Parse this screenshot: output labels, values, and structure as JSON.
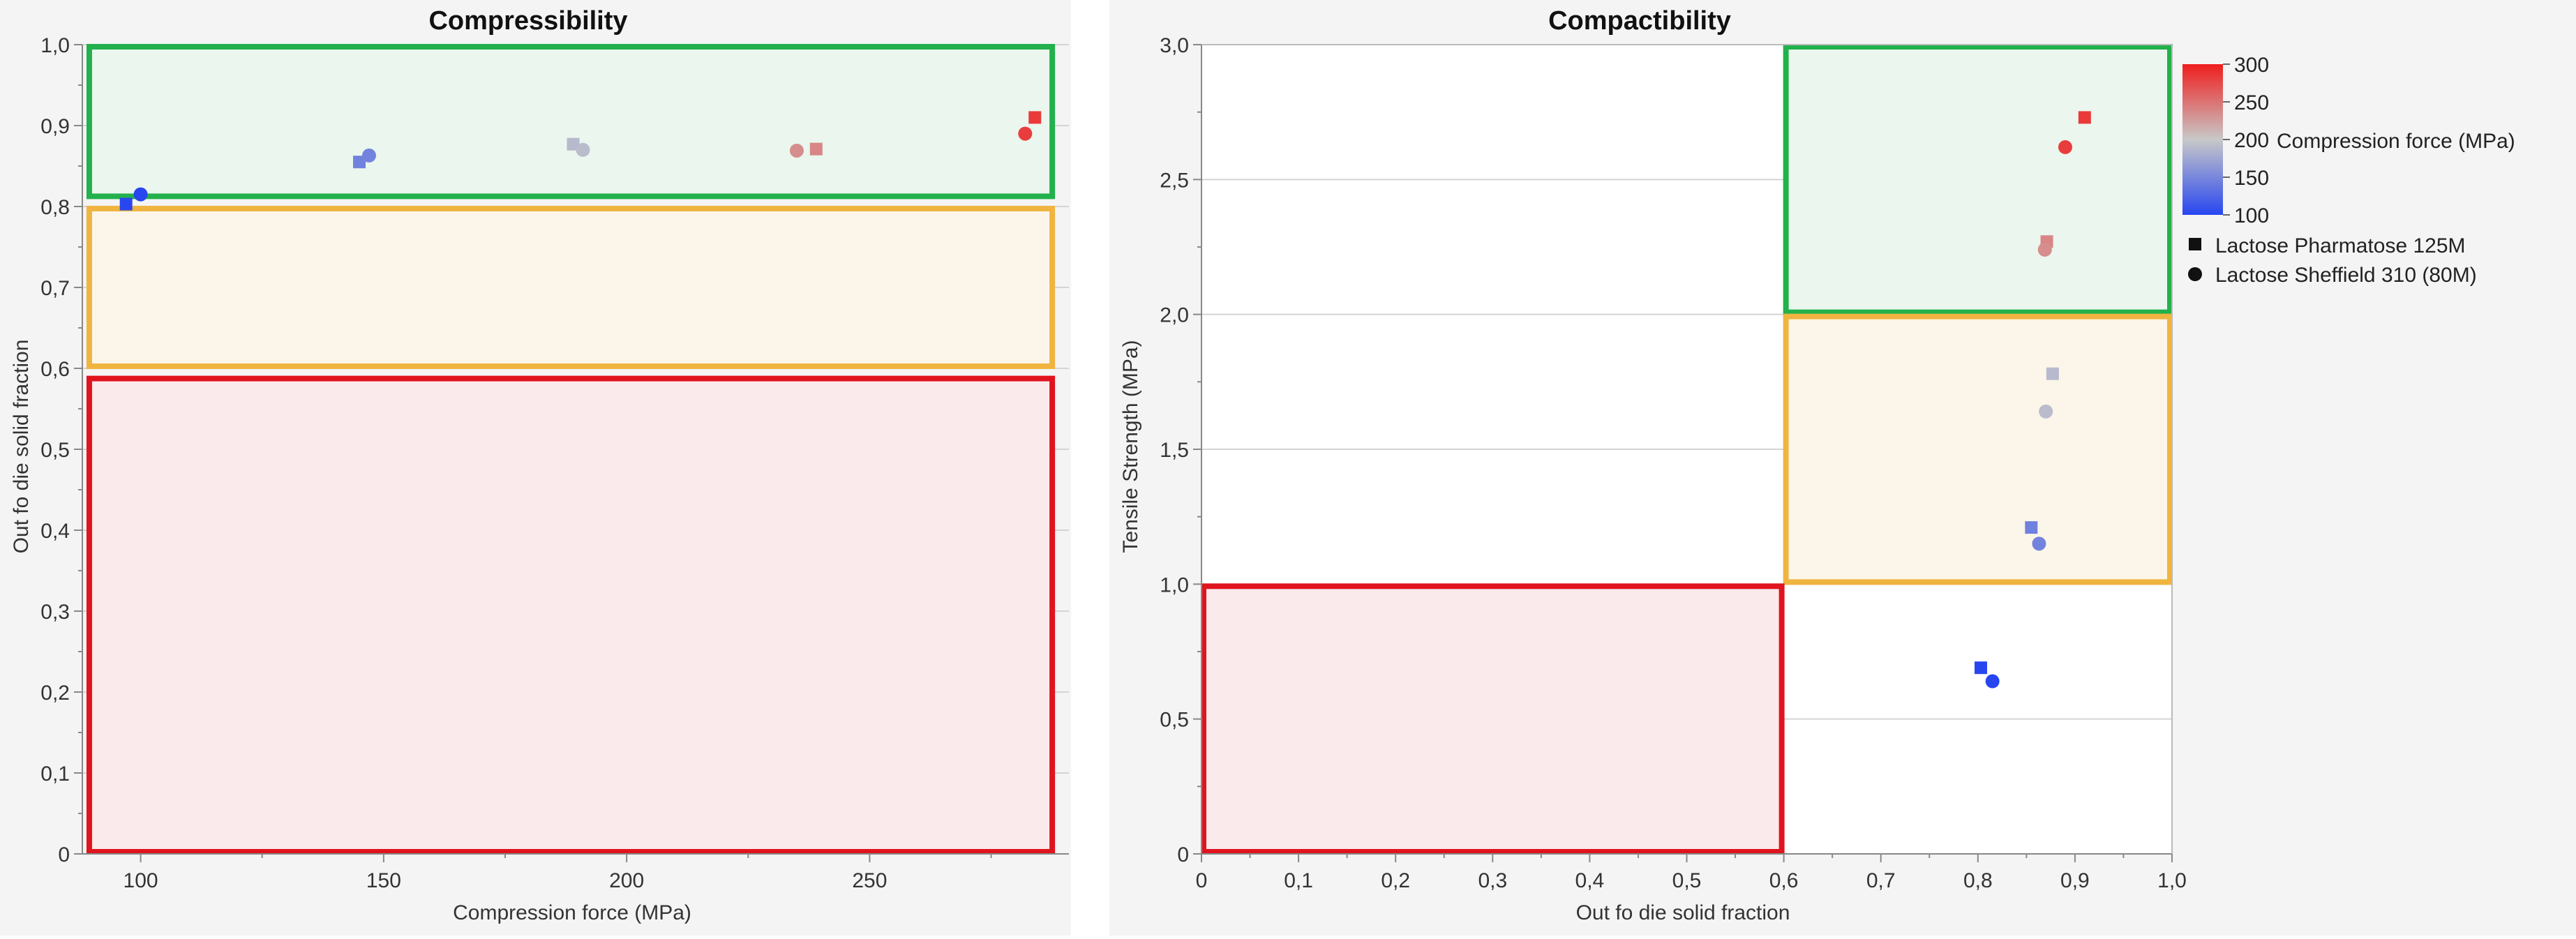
{
  "charts": {
    "compressibility": {
      "title": "Compressibility",
      "xlabel": "Compression force (MPa)",
      "ylabel": "Out fo die solid fraction",
      "x_ticks": [
        "100",
        "150",
        "200",
        "250"
      ],
      "y_ticks": [
        "0",
        "0,1",
        "0,2",
        "0,3",
        "0,4",
        "0,5",
        "0,6",
        "0,7",
        "0,8",
        "0,9",
        "1,0"
      ]
    },
    "compactibility": {
      "title": "Compactibility",
      "xlabel": "Out fo die solid fraction",
      "ylabel": "Tensile Strength (MPa)",
      "x_ticks": [
        "0",
        "0,1",
        "0,2",
        "0,3",
        "0,4",
        "0,5",
        "0,6",
        "0,7",
        "0,8",
        "0,9",
        "1,0"
      ],
      "y_ticks": [
        "0",
        "0,5",
        "1,0",
        "1,5",
        "2,0",
        "2,5",
        "3,0"
      ]
    }
  },
  "legend": {
    "colorbar_title": "Compression force (MPa)",
    "colorbar_ticks": [
      "300",
      "250",
      "200",
      "150",
      "100"
    ],
    "series": [
      {
        "name": "Lactose Pharmatose 125M",
        "marker": "square"
      },
      {
        "name": "Lactose Sheffield 310 (80M)",
        "marker": "circle"
      }
    ]
  },
  "colors": {
    "zone_green": "#22b14c",
    "zone_orange": "#f0b440",
    "zone_red": "#e0141e",
    "zone_green_fill": "#eaf6ee",
    "zone_orange_fill": "#fcf6ea",
    "zone_red_fill": "#fbeaec",
    "colorscale_low": "#2846f0",
    "colorscale_mid": "#c8c8c8",
    "colorscale_high": "#f01e1e"
  },
  "chart_data": [
    {
      "type": "scatter",
      "title": "Compressibility",
      "xlabel": "Compression force (MPa)",
      "ylabel": "Out fo die solid fraction",
      "xlim": [
        88,
        291
      ],
      "ylim": [
        0,
        1.0
      ],
      "grid": "horizontal",
      "zones": [
        {
          "color": "green",
          "x": [
            89,
            288
          ],
          "y": [
            0.81,
            1.0
          ]
        },
        {
          "color": "orange",
          "x": [
            89,
            288
          ],
          "y": [
            0.6,
            0.8
          ]
        },
        {
          "color": "red",
          "x": [
            89,
            288
          ],
          "y": [
            0,
            0.59
          ]
        }
      ],
      "series": [
        {
          "name": "Lactose Pharmatose 125M",
          "marker": "square",
          "x": [
            97,
            145,
            189,
            239,
            284
          ],
          "y": [
            0.803,
            0.855,
            0.877,
            0.871,
            0.91
          ]
        },
        {
          "name": "Lactose Sheffield 310 (80M)",
          "marker": "circle",
          "x": [
            100,
            147,
            191,
            235,
            282
          ],
          "y": [
            0.815,
            0.863,
            0.87,
            0.869,
            0.89
          ]
        }
      ]
    },
    {
      "type": "scatter",
      "title": "Compactibility",
      "xlabel": "Out fo die solid fraction",
      "ylabel": "Tensile Strength (MPa)",
      "xlim": [
        0,
        1.0
      ],
      "ylim": [
        0,
        3.0
      ],
      "grid": "horizontal",
      "zones": [
        {
          "color": "green",
          "x": [
            0.6,
            1.0
          ],
          "y": [
            2.0,
            3.0
          ]
        },
        {
          "color": "orange",
          "x": [
            0.6,
            1.0
          ],
          "y": [
            1.0,
            2.0
          ]
        },
        {
          "color": "red",
          "x": [
            0,
            0.6
          ],
          "y": [
            0,
            1.0
          ]
        }
      ],
      "series": [
        {
          "name": "Lactose Pharmatose 125M",
          "marker": "square",
          "x": [
            0.803,
            0.855,
            0.877,
            0.871,
            0.91
          ],
          "y": [
            0.69,
            1.21,
            1.78,
            2.27,
            2.73
          ],
          "force": [
            97,
            145,
            189,
            239,
            284
          ]
        },
        {
          "name": "Lactose Sheffield 310 (80M)",
          "marker": "circle",
          "x": [
            0.815,
            0.863,
            0.87,
            0.869,
            0.89
          ],
          "y": [
            0.64,
            1.15,
            1.64,
            2.24,
            2.62
          ],
          "force": [
            100,
            147,
            191,
            235,
            282
          ]
        }
      ],
      "color_scale": {
        "label": "Compression force (MPa)",
        "range": [
          100,
          300
        ]
      }
    }
  ]
}
